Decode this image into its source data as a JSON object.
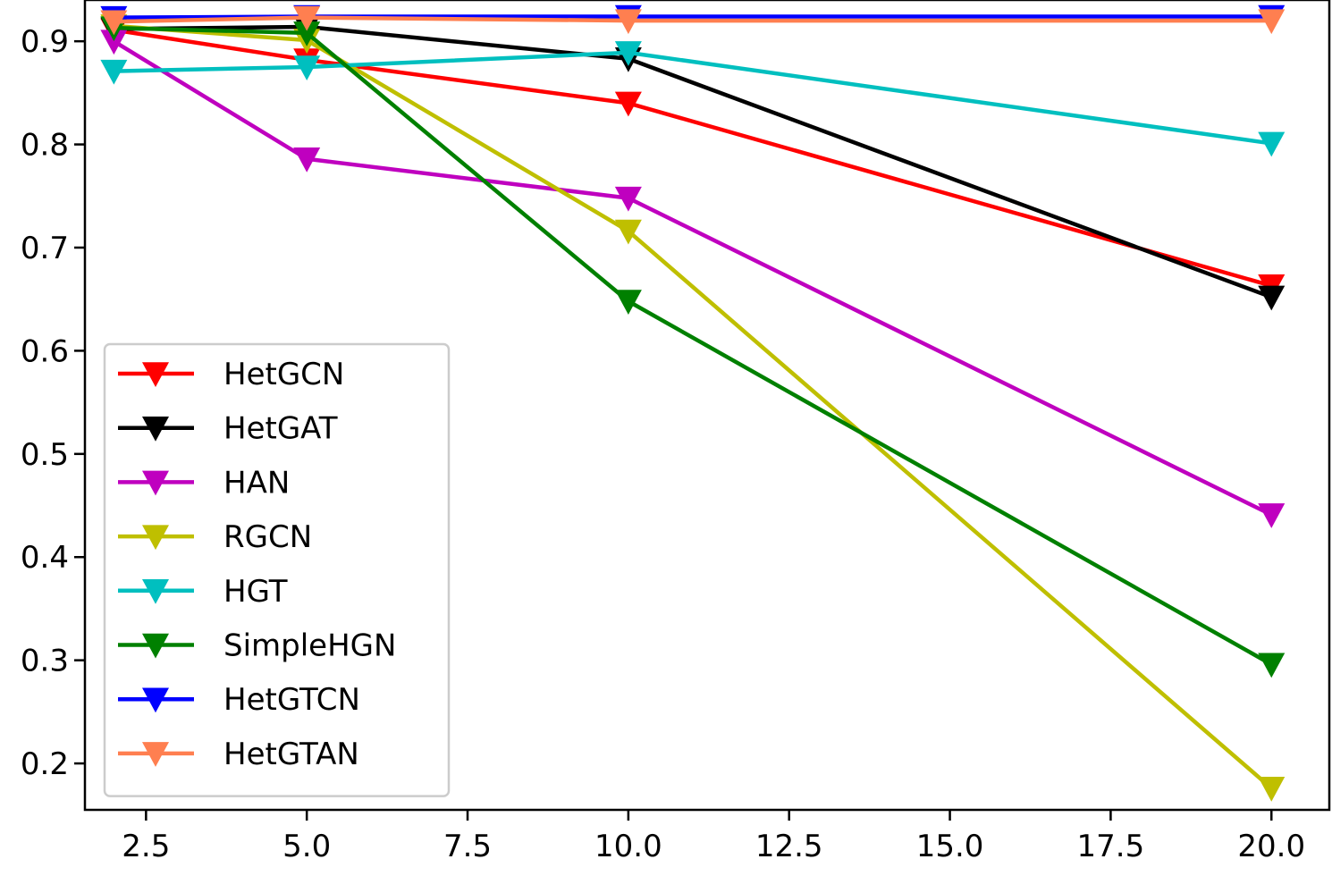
{
  "chart_data": {
    "type": "line",
    "title": "",
    "xlabel": "",
    "ylabel": "",
    "xlim": [
      1.55,
      20.9
    ],
    "ylim": [
      0.155,
      0.94
    ],
    "xticks": [
      2.5,
      5.0,
      7.5,
      10.0,
      12.5,
      15.0,
      17.5,
      20.0
    ],
    "xtick_labels": [
      "2.5",
      "5.0",
      "7.5",
      "10.0",
      "12.5",
      "15.0",
      "17.5",
      "20.0"
    ],
    "yticks": [
      0.2,
      0.3,
      0.4,
      0.5,
      0.6,
      0.7,
      0.8,
      0.9
    ],
    "ytick_labels": [
      "0.2",
      "0.3",
      "0.4",
      "0.5",
      "0.6",
      "0.7",
      "0.8",
      "0.9"
    ],
    "grid": false,
    "legend_position": "lower-left",
    "marker": "triangle-down",
    "x": [
      2,
      5,
      10,
      20
    ],
    "series": [
      {
        "name": "HetGCN",
        "color": "#ff0000",
        "values": [
          0.911,
          0.882,
          0.84,
          0.663
        ]
      },
      {
        "name": "HetGAT",
        "color": "#000000",
        "values": [
          0.912,
          0.914,
          0.883,
          0.652
        ]
      },
      {
        "name": "HAN",
        "color": "#bf00bf",
        "values": [
          0.9,
          0.786,
          0.748,
          0.441
        ]
      },
      {
        "name": "RGCN",
        "color": "#bfbf00",
        "values": [
          0.915,
          0.901,
          0.716,
          0.176
        ]
      },
      {
        "name": "HGT",
        "color": "#00bfbf",
        "values": [
          0.871,
          0.875,
          0.889,
          0.801
        ]
      },
      {
        "name": "SimpleHGN",
        "color": "#008000",
        "values": [
          0.913,
          0.908,
          0.648,
          0.296
        ]
      },
      {
        "name": "HetGTCN",
        "color": "#0000ff",
        "values": [
          0.923,
          0.924,
          0.924,
          0.924
        ]
      },
      {
        "name": "HetGTAN",
        "color": "#ff7f50",
        "values": [
          0.919,
          0.923,
          0.92,
          0.92
        ]
      }
    ]
  }
}
